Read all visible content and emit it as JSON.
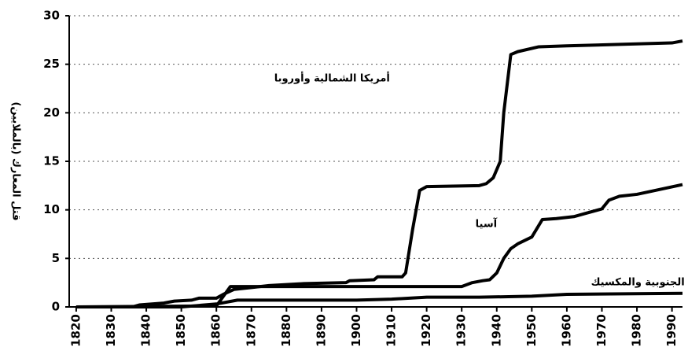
{
  "chart_data": {
    "type": "line",
    "y_label": "قتل المعارك (بالملايين)",
    "xlim": [
      1818,
      1993
    ],
    "xticks": [
      1820,
      1830,
      1840,
      1850,
      1860,
      1870,
      1880,
      1890,
      1900,
      1910,
      1920,
      1930,
      1940,
      1950,
      1960,
      1970,
      1980,
      1990
    ],
    "ylim": [
      0,
      30
    ],
    "yticks": [
      0,
      5,
      10,
      15,
      20,
      25,
      30
    ],
    "grid": true,
    "series": [
      {
        "name": "أمريكا الشمالية وأوروبا",
        "color": "#000000",
        "x": [
          1820,
          1836,
          1838,
          1845,
          1848,
          1853,
          1855,
          1860,
          1862,
          1865,
          1870,
          1875,
          1880,
          1885,
          1897,
          1898,
          1905,
          1906,
          1913,
          1914,
          1916,
          1918,
          1920,
          1935,
          1937,
          1939,
          1941,
          1942,
          1944,
          1946,
          1952,
          1960,
          1990,
          1993
        ],
        "values": [
          0,
          0,
          0.2,
          0.4,
          0.6,
          0.7,
          0.9,
          0.9,
          1.3,
          1.8,
          2.0,
          2.2,
          2.3,
          2.4,
          2.5,
          2.7,
          2.8,
          3.1,
          3.1,
          3.5,
          8,
          12.0,
          12.4,
          12.5,
          12.7,
          13.3,
          15,
          20,
          26,
          26.3,
          26.8,
          26.9,
          27.2,
          27.4
        ]
      },
      {
        "name": "آسيا",
        "color": "#000000",
        "x": [
          1820,
          1860,
          1864,
          1880,
          1930,
          1933,
          1936,
          1938,
          1940,
          1942,
          1944,
          1946,
          1950,
          1953,
          1957,
          1962,
          1965,
          1970,
          1972,
          1975,
          1980,
          1993
        ],
        "values": [
          0,
          0.1,
          2.1,
          2.1,
          2.1,
          2.5,
          2.7,
          2.8,
          3.5,
          5,
          6,
          6.5,
          7.2,
          9.0,
          9.1,
          9.3,
          9.6,
          10.1,
          11,
          11.4,
          11.6,
          12.6
        ]
      },
      {
        "name": "أمريكا الجنوبية والمكسيك",
        "color": "#000000",
        "x": [
          1820,
          1850,
          1860,
          1866,
          1880,
          1900,
          1910,
          1920,
          1935,
          1950,
          1960,
          1993
        ],
        "values": [
          0,
          0,
          0.3,
          0.7,
          0.7,
          0.7,
          0.8,
          1.0,
          1.0,
          1.1,
          1.3,
          1.4
        ]
      }
    ]
  }
}
